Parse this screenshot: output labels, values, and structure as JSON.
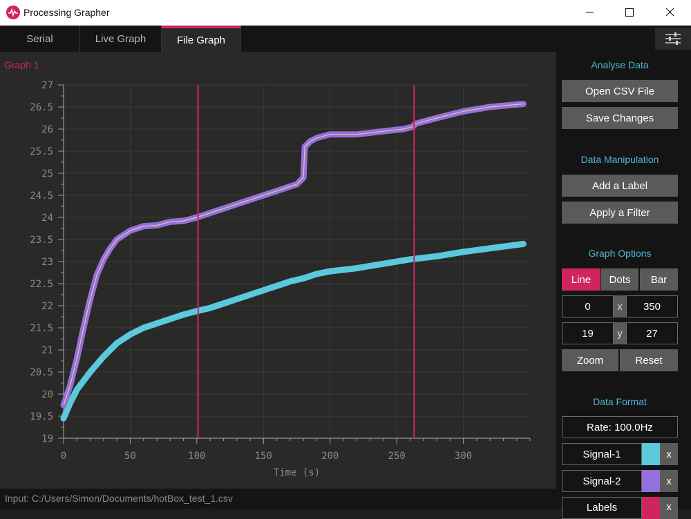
{
  "window": {
    "title": "Processing Grapher"
  },
  "tabs": [
    {
      "label": "Serial",
      "active": false
    },
    {
      "label": "Live Graph",
      "active": false
    },
    {
      "label": "File Graph",
      "active": true
    }
  ],
  "graph": {
    "title": "Graph 1"
  },
  "chart_data": {
    "type": "line",
    "xlabel": "Time (s)",
    "xlim": [
      0,
      350
    ],
    "ylim": [
      19,
      27
    ],
    "x_ticks": [
      0,
      50,
      100,
      150,
      200,
      250,
      300
    ],
    "y_ticks": [
      19,
      19.5,
      20,
      20.5,
      21,
      21.5,
      22,
      22.5,
      23,
      23.5,
      24,
      24.5,
      25,
      25.5,
      26,
      26.5,
      27
    ],
    "grid": true,
    "markers_x": [
      101,
      263
    ],
    "series": [
      {
        "name": "Signal-1",
        "color": "#5bc8dc",
        "x": [
          0,
          5,
          10,
          20,
          30,
          40,
          50,
          60,
          70,
          80,
          90,
          100,
          110,
          120,
          130,
          150,
          170,
          180,
          190,
          200,
          220,
          240,
          260,
          280,
          300,
          320,
          345
        ],
        "y": [
          19.45,
          19.8,
          20.1,
          20.5,
          20.85,
          21.15,
          21.35,
          21.5,
          21.6,
          21.7,
          21.8,
          21.88,
          21.95,
          22.05,
          22.15,
          22.35,
          22.55,
          22.62,
          22.72,
          22.78,
          22.85,
          22.95,
          23.05,
          23.12,
          23.22,
          23.3,
          23.4
        ]
      },
      {
        "name": "Signal-2",
        "color": "#9370db",
        "x": [
          0,
          5,
          10,
          15,
          20,
          25,
          30,
          35,
          40,
          45,
          50,
          55,
          60,
          70,
          80,
          90,
          100,
          110,
          120,
          140,
          160,
          175,
          180,
          181,
          185,
          190,
          200,
          220,
          240,
          255,
          262,
          264,
          280,
          300,
          320,
          345
        ],
        "y": [
          19.75,
          20.2,
          20.8,
          21.5,
          22.15,
          22.7,
          23.05,
          23.3,
          23.5,
          23.6,
          23.7,
          23.75,
          23.8,
          23.82,
          23.9,
          23.92,
          24.0,
          24.1,
          24.2,
          24.4,
          24.6,
          24.75,
          24.9,
          25.6,
          25.72,
          25.8,
          25.88,
          25.88,
          25.95,
          26.0,
          26.05,
          26.12,
          26.25,
          26.4,
          26.5,
          26.57
        ]
      }
    ]
  },
  "status": {
    "input": "Input: C:/Users/Simon/Documents/hotBox_test_1.csv"
  },
  "sidebar": {
    "analyse": {
      "title": "Analyse Data",
      "open": "Open CSV File",
      "save": "Save Changes"
    },
    "manip": {
      "title": "Data Manipulation",
      "label": "Add a Label",
      "filter": "Apply a Filter"
    },
    "options": {
      "title": "Graph Options",
      "line": "Line",
      "dots": "Dots",
      "bar": "Bar",
      "x_min": "0",
      "x_sep": "x",
      "x_max": "350",
      "y_min": "19",
      "y_sep": "y",
      "y_max": "27",
      "zoom": "Zoom",
      "reset": "Reset"
    },
    "format": {
      "title": "Data Format",
      "rate": "Rate: 100.0Hz",
      "signals": [
        {
          "name": "Signal-1",
          "color": "#5bc8dc",
          "remove": "x"
        },
        {
          "name": "Signal-2",
          "color": "#9370db",
          "remove": "x"
        },
        {
          "name": "Labels",
          "color": "#d0245e",
          "remove": "x"
        }
      ]
    }
  }
}
